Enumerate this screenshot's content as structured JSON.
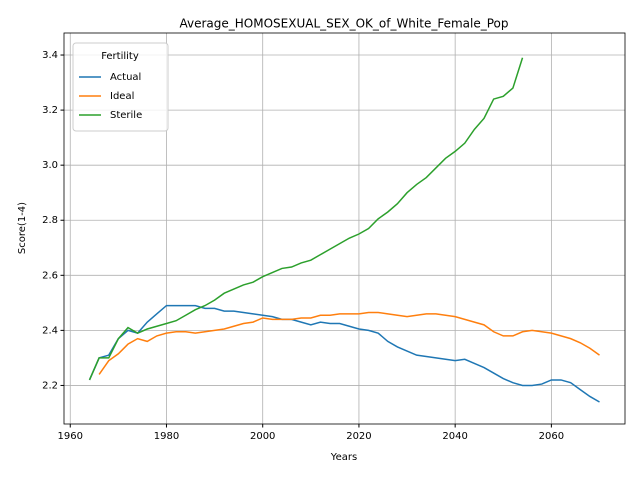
{
  "chart_data": {
    "type": "line",
    "title": "Average_HOMOSEXUAL_SEX_OK_of_White_Female_Pop",
    "xlabel": "Years",
    "ylabel": "Score(1-4)",
    "legend_title": "Fertility",
    "legend": "upper left",
    "grid": true,
    "x": [
      1964,
      1966,
      1968,
      1970,
      1972,
      1974,
      1976,
      1978,
      1980,
      1982,
      1984,
      1986,
      1988,
      1990,
      1992,
      1994,
      1996,
      1998,
      2000,
      2002,
      2004,
      2006,
      2008,
      2010,
      2012,
      2014,
      2016,
      2018,
      2020,
      2022,
      2024,
      2026,
      2028,
      2030,
      2032,
      2034,
      2036,
      2038,
      2040,
      2042,
      2044,
      2046,
      2048,
      2050,
      2052,
      2054,
      2056,
      2058,
      2060,
      2062,
      2064,
      2066,
      2068,
      2070
    ],
    "series": [
      {
        "name": "Actual",
        "color": "#1f77b4",
        "values": [
          2.22,
          2.3,
          2.31,
          2.37,
          2.4,
          2.39,
          2.43,
          2.46,
          2.49,
          2.49,
          2.49,
          2.49,
          2.48,
          2.48,
          2.47,
          2.47,
          2.465,
          2.46,
          2.455,
          2.45,
          2.44,
          2.44,
          2.43,
          2.42,
          2.43,
          2.425,
          2.425,
          2.415,
          2.405,
          2.4,
          2.39,
          2.36,
          2.34,
          2.325,
          2.31,
          2.305,
          2.3,
          2.295,
          2.29,
          2.295,
          2.28,
          2.265,
          2.245,
          2.225,
          2.21,
          2.2,
          2.2,
          2.205,
          2.22,
          2.22,
          2.21,
          2.185,
          2.16,
          2.14
        ]
      },
      {
        "name": "Ideal",
        "color": "#ff7f0e",
        "values": [
          null,
          2.24,
          2.29,
          2.315,
          2.35,
          2.37,
          2.36,
          2.38,
          2.39,
          2.395,
          2.395,
          2.39,
          2.395,
          2.4,
          2.405,
          2.415,
          2.425,
          2.43,
          2.445,
          2.44,
          2.44,
          2.44,
          2.445,
          2.445,
          2.455,
          2.455,
          2.46,
          2.46,
          2.46,
          2.465,
          2.465,
          2.46,
          2.455,
          2.45,
          2.455,
          2.46,
          2.46,
          2.455,
          2.45,
          2.44,
          2.43,
          2.42,
          2.395,
          2.38,
          2.38,
          2.395,
          2.4,
          2.395,
          2.39,
          2.38,
          2.37,
          2.355,
          2.335,
          2.31
        ]
      },
      {
        "name": "Sterile",
        "color": "#2ca02c",
        "values": [
          2.22,
          2.3,
          2.3,
          2.37,
          2.41,
          2.39,
          2.405,
          2.415,
          2.425,
          2.435,
          2.455,
          2.475,
          2.49,
          2.51,
          2.535,
          2.55,
          2.565,
          2.575,
          2.595,
          2.61,
          2.625,
          2.63,
          2.645,
          2.655,
          2.675,
          2.695,
          2.715,
          2.735,
          2.75,
          2.77,
          2.805,
          2.83,
          2.86,
          2.9,
          2.93,
          2.955,
          2.99,
          3.025,
          3.05,
          3.08,
          3.13,
          3.17,
          3.24,
          3.25,
          3.28,
          3.39,
          null,
          null,
          null,
          null,
          null,
          null,
          null,
          null
        ]
      }
    ],
    "xlim": [
      1958.7,
      2075.3
    ],
    "xticks": [
      1960,
      1980,
      2000,
      2020,
      2040,
      2060
    ],
    "ylim": [
      2.06,
      3.48
    ],
    "yticks": [
      2.2,
      2.4,
      2.6,
      2.8,
      {
        "value": 3,
        "label": "3.0"
      },
      3.2,
      3.4
    ]
  }
}
